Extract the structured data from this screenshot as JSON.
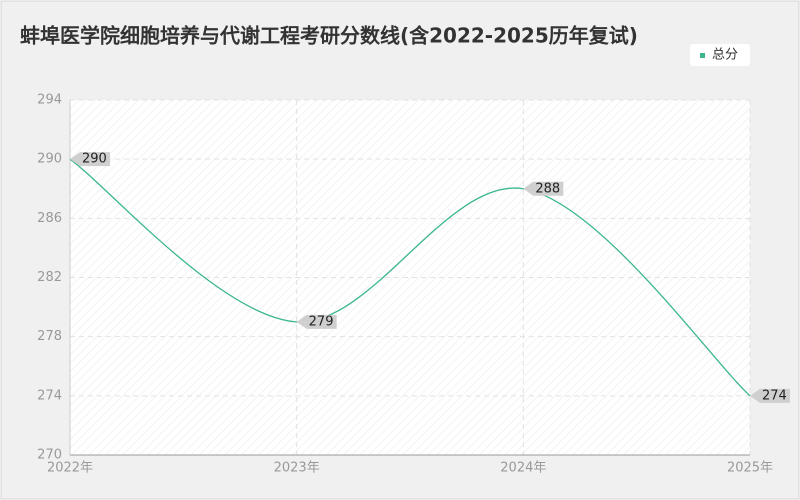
{
  "chart_data": {
    "type": "line",
    "title": "蚌埠医学院细胞培养与代谢工程考研分数线(含2022-2025历年复试)",
    "categories": [
      "2022年",
      "2023年",
      "2024年",
      "2025年"
    ],
    "series": [
      {
        "name": "总分",
        "color": "#3cb88a",
        "values": [
          290,
          279,
          288,
          274
        ]
      }
    ],
    "ylim": [
      270,
      294
    ],
    "yticks": [
      270,
      274,
      278,
      282,
      286,
      290,
      294
    ],
    "grid": true
  }
}
